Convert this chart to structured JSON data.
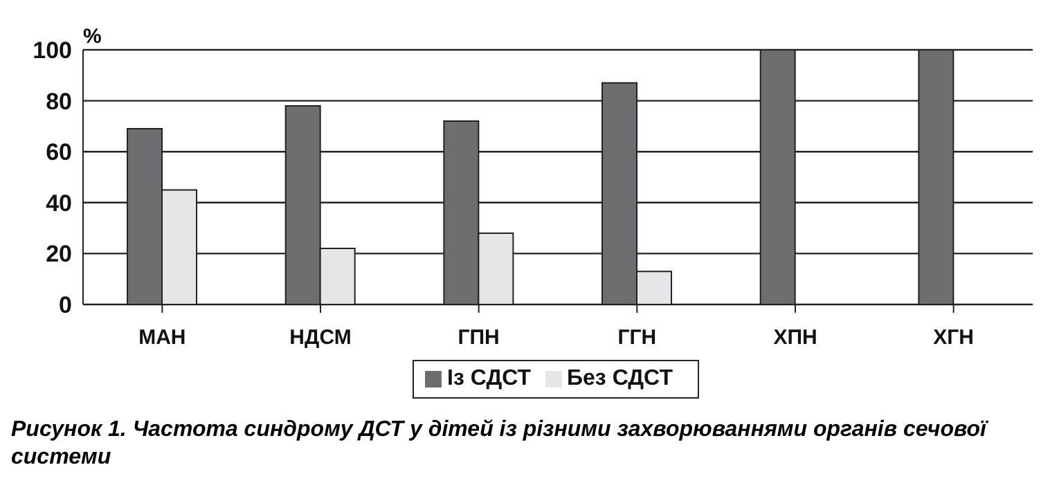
{
  "chart_data": {
    "type": "bar",
    "title": "Рисунок 1. Частота синдрому ДСТ у дітей із різними захворюваннями органів сечової системи",
    "ylabel": "%",
    "categories": [
      "МАН",
      "НДСМ",
      "ГПН",
      "ГГН",
      "ХПН",
      "ХГН"
    ],
    "series": [
      {
        "name": "Із СДСТ",
        "color": "#6e6e70",
        "values": [
          69,
          78,
          72,
          87,
          100,
          100
        ]
      },
      {
        "name": "Без СДСТ",
        "color": "#e6e6e8",
        "values": [
          45,
          22,
          28,
          13,
          0,
          0
        ]
      }
    ],
    "ylim": [
      0,
      100
    ],
    "yticks": [
      0,
      20,
      40,
      60,
      80,
      100
    ],
    "grid": "y",
    "legend": "bottom"
  }
}
